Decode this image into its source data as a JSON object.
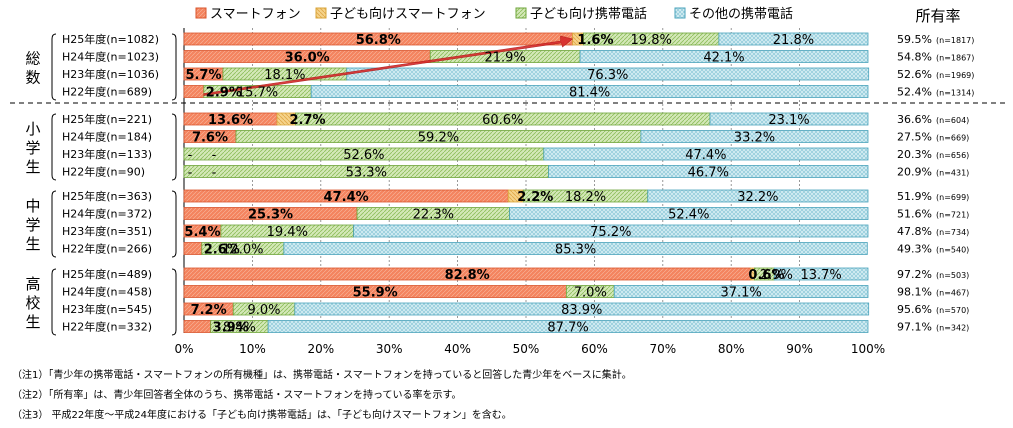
{
  "share_title": "所有率",
  "colors": {
    "smartphone": "#f4845f",
    "kids_smartphone": "#f5d38a",
    "kids_phone": "#c6e0a2",
    "other_phone": "#c9e8ef",
    "smartphone_stroke": "#d9562e",
    "kids_smartphone_stroke": "#d9a53a",
    "kids_phone_stroke": "#6ea53a",
    "other_phone_stroke": "#4aa3bb"
  },
  "notes": [
    "（注1）「青少年の携帯電話・スマートフォンの所有機種」は、携帯電話・スマートフォンを持っていると回答した青少年をベースに集計。",
    "（注2）「所有率」は、青少年回答者全体のうち、携帯電話・スマートフォンを持っている率を示す。",
    "（注3） 平成22年度～平成24年度における「子ども向け携帯電話」は、「子ども向けスマートフォン」を含む。"
  ],
  "chart_data": {
    "type": "bar",
    "orientation": "horizontal-stacked-100",
    "xlim": [
      0,
      100
    ],
    "x_ticks": [
      "0%",
      "10%",
      "20%",
      "30%",
      "40%",
      "50%",
      "60%",
      "70%",
      "80%",
      "90%",
      "100%"
    ],
    "legend_position": "top",
    "series": [
      {
        "key": "smartphone",
        "name": "スマートフォン"
      },
      {
        "key": "kids_smartphone",
        "name": "子ども向けスマートフォン"
      },
      {
        "key": "kids_phone",
        "name": "子ども向け携帯電話"
      },
      {
        "key": "other_phone",
        "name": "その他の携帯電話"
      }
    ],
    "groups": [
      {
        "name": "総数",
        "rows": [
          {
            "label": "H25年度(n=1082)",
            "values": [
              56.8,
              1.6,
              19.8,
              21.8
            ],
            "labels": [
              "56.8%",
              "1.6%",
              "19.8%",
              "21.8%"
            ],
            "share": "59.5%",
            "share_n": "(n=1817)"
          },
          {
            "label": "H24年度(n=1023)",
            "values": [
              36.0,
              0,
              21.9,
              42.1
            ],
            "labels": [
              "36.0%",
              "",
              "21.9%",
              "42.1%"
            ],
            "share": "54.8%",
            "share_n": "(n=1867)"
          },
          {
            "label": "H23年度(n=1036)",
            "values": [
              5.7,
              0,
              18.1,
              76.3
            ],
            "labels": [
              "5.7%",
              "",
              "18.1%",
              "76.3%"
            ],
            "share": "52.6%",
            "share_n": "(n=1969)"
          },
          {
            "label": "H22年度(n=689)",
            "values": [
              2.9,
              0,
              15.7,
              81.4
            ],
            "labels": [
              "2.9%",
              "",
              "15.7%",
              "81.4%"
            ],
            "share": "52.4%",
            "share_n": "(n=1314)"
          }
        ]
      },
      {
        "name": "小学生",
        "rows": [
          {
            "label": "H25年度(n=221)",
            "values": [
              13.6,
              2.7,
              60.6,
              23.1
            ],
            "labels": [
              "13.6%",
              "2.7%",
              "60.6%",
              "23.1%"
            ],
            "share": "36.6%",
            "share_n": "(n=604)"
          },
          {
            "label": "H24年度(n=184)",
            "values": [
              7.6,
              0,
              59.2,
              33.2
            ],
            "labels": [
              "7.6%",
              "",
              "59.2%",
              "33.2%"
            ],
            "share": "27.5%",
            "share_n": "(n=669)"
          },
          {
            "label": "H23年度(n=133)",
            "values": [
              0,
              0,
              52.6,
              47.4
            ],
            "labels": [
              "-",
              "-",
              "52.6%",
              "47.4%"
            ],
            "share": "20.3%",
            "share_n": "(n=656)"
          },
          {
            "label": "H22年度(n=90)",
            "values": [
              0,
              0,
              53.3,
              46.7
            ],
            "labels": [
              "-",
              "-",
              "53.3%",
              "46.7%"
            ],
            "share": "20.9%",
            "share_n": "(n=431)"
          }
        ]
      },
      {
        "name": "中学生",
        "rows": [
          {
            "label": "H25年度(n=363)",
            "values": [
              47.4,
              2.2,
              18.2,
              32.2
            ],
            "labels": [
              "47.4%",
              "2.2%",
              "18.2%",
              "32.2%"
            ],
            "share": "51.9%",
            "share_n": "(n=699)"
          },
          {
            "label": "H24年度(n=372)",
            "values": [
              25.3,
              0,
              22.3,
              52.4
            ],
            "labels": [
              "25.3%",
              "",
              "22.3%",
              "52.4%"
            ],
            "share": "51.6%",
            "share_n": "(n=721)"
          },
          {
            "label": "H23年度(n=351)",
            "values": [
              5.4,
              0,
              19.4,
              75.2
            ],
            "labels": [
              "5.4%",
              "",
              "19.4%",
              "75.2%"
            ],
            "share": "47.8%",
            "share_n": "(n=734)"
          },
          {
            "label": "H22年度(n=266)",
            "values": [
              2.6,
              0,
              12.0,
              85.3
            ],
            "labels": [
              "2.6%",
              "",
              "12.0%",
              "85.3%"
            ],
            "share": "49.3%",
            "share_n": "(n=540)"
          }
        ]
      },
      {
        "name": "高校生",
        "rows": [
          {
            "label": "H25年度(n=489)",
            "values": [
              82.8,
              0.6,
              2.9,
              13.7
            ],
            "labels": [
              "82.8%",
              "0.6%",
              "2.9%",
              "13.7%"
            ],
            "share": "97.2%",
            "share_n": "(n=503)"
          },
          {
            "label": "H24年度(n=458)",
            "values": [
              55.9,
              0,
              7.0,
              37.1
            ],
            "labels": [
              "55.9%",
              "",
              "7.0%",
              "37.1%"
            ],
            "share": "98.1%",
            "share_n": "(n=467)"
          },
          {
            "label": "H23年度(n=545)",
            "values": [
              7.2,
              0,
              9.0,
              83.9
            ],
            "labels": [
              "7.2%",
              "",
              "9.0%",
              "83.9%"
            ],
            "share": "95.6%",
            "share_n": "(n=570)"
          },
          {
            "label": "H22年度(n=332)",
            "values": [
              3.9,
              0,
              8.4,
              87.7
            ],
            "labels": [
              "3.9%",
              "",
              "8.4%",
              "87.7%"
            ],
            "share": "97.1%",
            "share_n": "(n=342)"
          }
        ]
      }
    ]
  }
}
